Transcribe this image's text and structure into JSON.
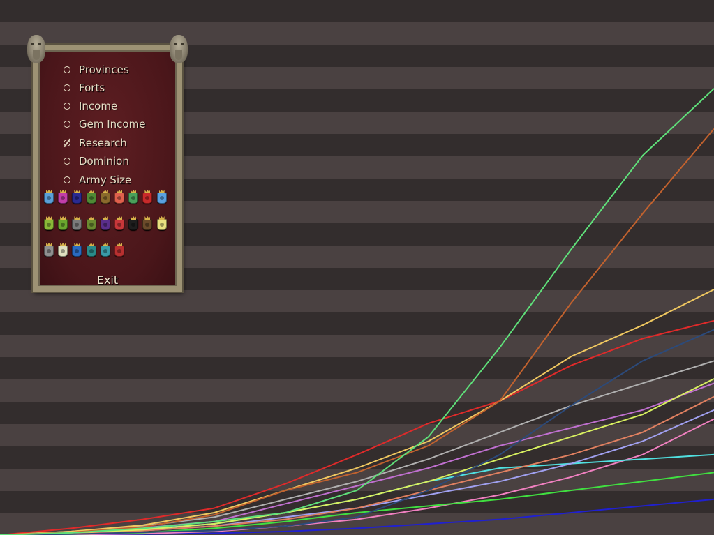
{
  "menu": {
    "items": [
      {
        "label": "Provinces",
        "selected": false
      },
      {
        "label": "Forts",
        "selected": false
      },
      {
        "label": "Income",
        "selected": false
      },
      {
        "label": "Gem Income",
        "selected": false
      },
      {
        "label": "Research",
        "selected": true
      },
      {
        "label": "Dominion",
        "selected": false
      },
      {
        "label": "Army Size",
        "selected": false
      }
    ],
    "exit_label": "Exit"
  },
  "nation_flag_colors": [
    "#5a9fd8",
    "#c23ea8",
    "#2a2a90",
    "#4f8a35",
    "#8a6a2c",
    "#e0604c",
    "#4aa05a",
    "#c82a2a",
    "#5aa0e0",
    "#8ab838",
    "#6aa62e",
    "#7a7a7a",
    "#6a8a30",
    "#5a2e8a",
    "#c8373a",
    "#1e1e1e",
    "#6a4a2a",
    "#e8e080",
    "#909090",
    "#e0e0c0",
    "#2a6ac0",
    "#2a8a8a",
    "#3a9aa8",
    "#b83030"
  ],
  "chart_data": {
    "type": "line",
    "title": "",
    "xlabel": "",
    "ylabel": "",
    "grid": false,
    "x": [
      0,
      1,
      2,
      3,
      4,
      5,
      6,
      7,
      8,
      9,
      10
    ],
    "xlim": [
      0,
      10
    ],
    "ylim": [
      0,
      100
    ],
    "series": [
      {
        "color": "#5fe07a",
        "values": [
          0,
          0.5,
          1.5,
          3,
          5,
          10,
          22,
          42,
          64,
          85,
          100
        ]
      },
      {
        "color": "#c2622e",
        "values": [
          0,
          0.6,
          1.8,
          4.5,
          10,
          14,
          20,
          30,
          52,
          72,
          91
        ]
      },
      {
        "color": "#f0c860",
        "values": [
          0,
          0.8,
          2.2,
          5,
          10,
          15,
          21,
          30,
          40,
          47,
          55
        ]
      },
      {
        "color": "#e02a2a",
        "values": [
          0,
          1.5,
          3.5,
          6,
          11.5,
          18,
          25,
          30,
          38,
          44,
          48
        ]
      },
      {
        "color": "#2c4a7a",
        "values": [
          0,
          0.2,
          0.6,
          1,
          2,
          4,
          10,
          18,
          29,
          39,
          46
        ]
      },
      {
        "color": "#b0b0b0",
        "values": [
          0,
          0.8,
          2,
          4,
          8,
          12,
          17,
          23,
          29,
          34,
          39
        ]
      },
      {
        "color": "#d8f060",
        "values": [
          0,
          0.5,
          1.2,
          2.5,
          5,
          8,
          12,
          17,
          22,
          27,
          35
        ]
      },
      {
        "color": "#c070d0",
        "values": [
          0,
          0.7,
          1.6,
          3,
          7,
          11,
          15,
          20,
          24,
          28,
          34
        ]
      },
      {
        "color": "#e08060",
        "values": [
          0,
          0.3,
          1,
          2,
          3.5,
          6,
          10,
          14,
          18,
          23,
          31
        ]
      },
      {
        "color": "#a0a0f0",
        "values": [
          0,
          0.4,
          1,
          2,
          4,
          6,
          9,
          12,
          16,
          21,
          28
        ]
      },
      {
        "color": "#50e0e0",
        "values": [
          0,
          0.5,
          1.3,
          2.5,
          5,
          8,
          12,
          15,
          16,
          17,
          18
        ]
      },
      {
        "color": "#40e040",
        "values": [
          0,
          0.2,
          0.5,
          1.5,
          3,
          5,
          6.5,
          8,
          10,
          12,
          14
        ]
      },
      {
        "color": "#f080c0",
        "values": [
          0,
          0.1,
          0.3,
          0.8,
          2,
          3.5,
          6,
          9,
          13,
          18,
          26
        ]
      },
      {
        "color": "#2020d0",
        "values": [
          0,
          0.1,
          0.2,
          0.4,
          0.8,
          1.5,
          2.5,
          3.5,
          5,
          6.5,
          8
        ]
      }
    ]
  }
}
